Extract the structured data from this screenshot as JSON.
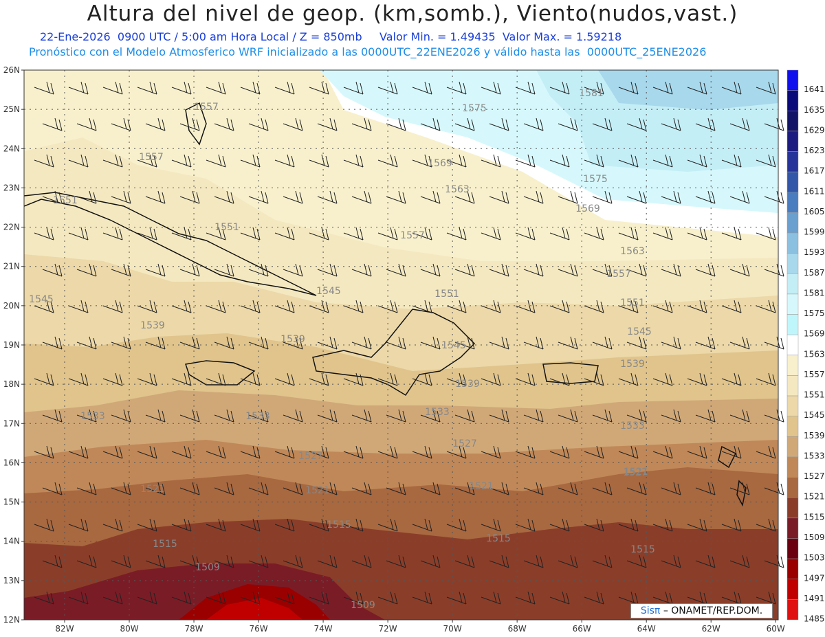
{
  "header": {
    "title": "Altura del nivel de geop. (km,somb.), Viento(nudos,vast.)",
    "line1": "22-Ene-2026  0900 UTC / 5:00 am Hora Local / Z = 850mb     Valor Min. = 1.49435  Valor Max. = 1.59218",
    "line2": "Pronóstico con el Modelo Atmosferico WRF inicializado a las 0000UTC_22ENE2026 y válido hasta las  0000UTC_25ENE2026"
  },
  "map": {
    "lat_labels": [
      "26N",
      "25N",
      "24N",
      "23N",
      "22N",
      "21N",
      "20N",
      "19N",
      "18N",
      "17N",
      "16N",
      "15N",
      "14N",
      "13N",
      "12N"
    ],
    "lon_labels": [
      "82W",
      "80W",
      "78W",
      "76W",
      "74W",
      "72W",
      "70W",
      "68W",
      "66W",
      "64W",
      "62W",
      "60W"
    ],
    "contour_labels": [
      "1581",
      "1575",
      "1575",
      "1569",
      "1569",
      "1563",
      "1563",
      "1557",
      "1557",
      "1557",
      "1557",
      "1551",
      "1551",
      "1551",
      "1551",
      "1545",
      "1545",
      "1545",
      "1545",
      "1539",
      "1539",
      "1539",
      "1539",
      "1533",
      "1533",
      "1533",
      "1533",
      "1527",
      "1527",
      "1527",
      "1521",
      "1521",
      "1521",
      "1521",
      "1515",
      "1515",
      "1515",
      "1515",
      "1509",
      "1509"
    ]
  },
  "colorbar": {
    "levels": [
      "1641",
      "1635",
      "1629",
      "1623",
      "1617",
      "1611",
      "1605",
      "1599",
      "1593",
      "1587",
      "1581",
      "1575",
      "1569",
      "1563",
      "1557",
      "1551",
      "1545",
      "1539",
      "1533",
      "1527",
      "1521",
      "1515",
      "1509",
      "1503",
      "1497",
      "1491",
      "1485"
    ],
    "colors": [
      "#1010ee",
      "#0a0a7a",
      "#141466",
      "#1c1c80",
      "#26349a",
      "#3256a8",
      "#4a7cc0",
      "#6aa0d0",
      "#8cc0e0",
      "#a8d8ec",
      "#c4eef6",
      "#d6f8fc",
      "#bff6fb",
      "#ffffff",
      "#f8f0cc",
      "#f4e8c0",
      "#ecd8a8",
      "#e0c48c",
      "#d0a878",
      "#c08858",
      "#a86840",
      "#8a3e2a",
      "#7a1c26",
      "#6a0010",
      "#9a0000",
      "#c00000",
      "#e01010"
    ]
  },
  "credit": {
    "brand": "Sisπ",
    "text": "– ONAMET/REP.DOM."
  }
}
